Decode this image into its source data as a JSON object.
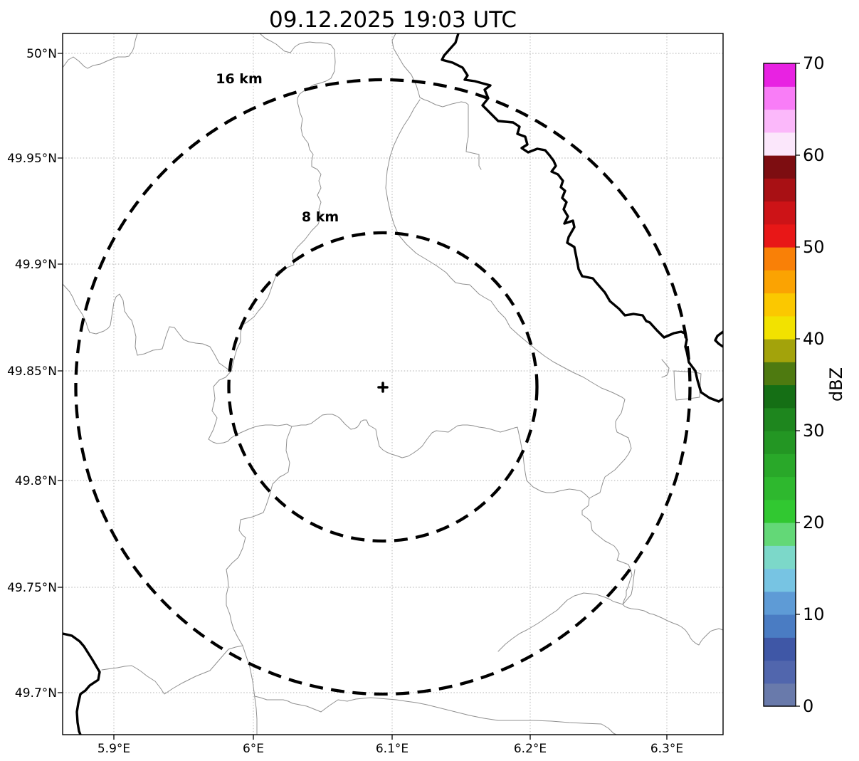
{
  "title": "09.12.2025 19:03 UTC",
  "axes": {
    "y_ticks": [
      "50°N",
      "49.95°N",
      "49.9°N",
      "49.85°N",
      "49.8°N",
      "49.75°N",
      "49.7°N"
    ],
    "x_ticks": [
      "5.9°E",
      "6°E",
      "6.1°E",
      "6.2°E",
      "6.3°E"
    ]
  },
  "rings": [
    {
      "label": "16 km"
    },
    {
      "label": "8 km"
    }
  ],
  "colorbar": {
    "label": "dBZ",
    "min": 0,
    "max": 70,
    "step": 2.5,
    "tick_labels": [
      "0",
      "10",
      "20",
      "30",
      "40",
      "50",
      "60",
      "70"
    ],
    "colors": [
      "#697aab",
      "#5166ad",
      "#3f57a6",
      "#4a7cc3",
      "#5e9bd6",
      "#77c4e3",
      "#7cd8c9",
      "#63d877",
      "#31c831",
      "#2eb82e",
      "#29a829",
      "#239623",
      "#1e861e",
      "#156f15",
      "#4e7a10",
      "#a3a30b",
      "#f2e200",
      "#fbc800",
      "#fba302",
      "#f98007",
      "#e81717",
      "#cd1317",
      "#a81014",
      "#7d0d11",
      "#fbe7fb",
      "#fbb8fa",
      "#f97df7",
      "#e822e2"
    ],
    "accent_black": "#000000",
    "boundary_grey": "#909090"
  }
}
